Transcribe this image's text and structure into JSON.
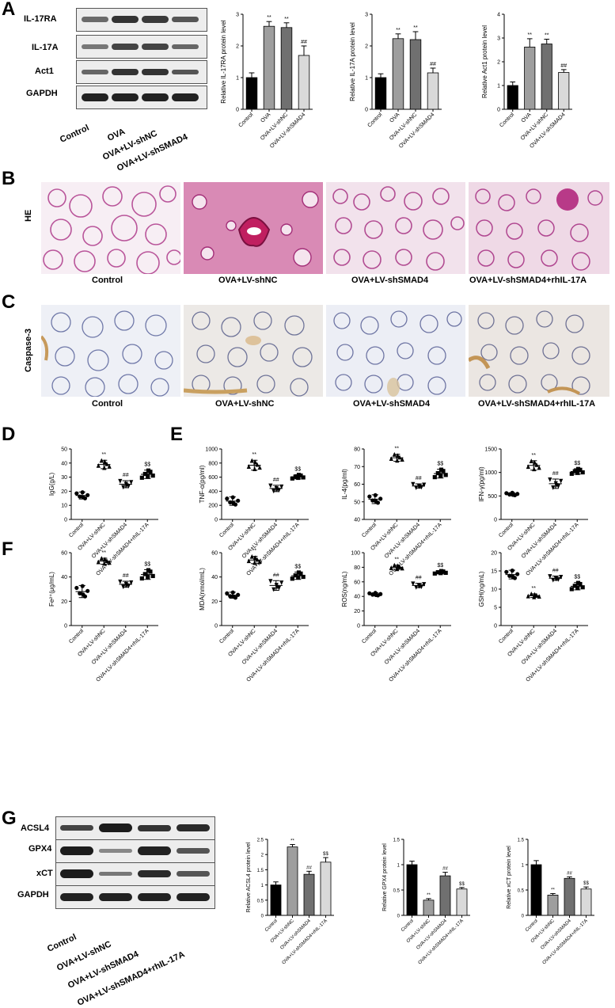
{
  "panels": {
    "A": "A",
    "B": "B",
    "C": "C",
    "D": "D",
    "E": "E",
    "F": "F",
    "G": "G"
  },
  "wb_A": {
    "proteins": [
      "IL-17RA",
      "IL-17A",
      "Act1",
      "GAPDH"
    ],
    "lanes": [
      "Control",
      "OVA",
      "OVA+LV-shNC",
      "OVA+LV-shSMAD4"
    ]
  },
  "histology": {
    "B_side": "HE",
    "C_side": "Caspase-3",
    "groups": [
      "Control",
      "OVA+LV-shNC",
      "OVA+LV-shSMAD4",
      "OVA+LV-shSMAD4+rhIL-17A"
    ]
  },
  "wb_G": {
    "proteins": [
      "ACSL4",
      "GPX4",
      "xCT",
      "GAPDH"
    ],
    "lanes": [
      "Control",
      "OVA+LV-shNC",
      "OVA+LV-shSMAD4",
      "OVA+LV-shSMAD4+rhIL-17A"
    ]
  },
  "chart_data": [
    {
      "id": "A1",
      "type": "bar",
      "categories": [
        "Control",
        "OVA",
        "OVA+LV-shNC",
        "OVA+LV-shSMAD4"
      ],
      "values": [
        1.0,
        2.62,
        2.58,
        1.7
      ],
      "errors": [
        0.15,
        0.15,
        0.15,
        0.3
      ],
      "sig": [
        "",
        "**",
        "**",
        "##"
      ],
      "ylabel": "Relative IL-17RA protein level",
      "ylim": [
        0,
        3
      ],
      "yticks": [
        0,
        1,
        2,
        3
      ],
      "colors": [
        "#000000",
        "#9e9e9e",
        "#707070",
        "#d9d9d9"
      ]
    },
    {
      "id": "A2",
      "type": "bar",
      "categories": [
        "Control",
        "OVA",
        "OVA+LV-shNC",
        "OVA+LV-shSMAD4"
      ],
      "values": [
        1.0,
        2.23,
        2.2,
        1.15
      ],
      "errors": [
        0.12,
        0.15,
        0.25,
        0.15
      ],
      "sig": [
        "",
        "**",
        "**",
        "##"
      ],
      "ylabel": "Relative IL-17A protein level",
      "ylim": [
        0,
        3
      ],
      "yticks": [
        0,
        1,
        2,
        3
      ],
      "colors": [
        "#000000",
        "#9e9e9e",
        "#707070",
        "#d9d9d9"
      ]
    },
    {
      "id": "A3",
      "type": "bar",
      "categories": [
        "Control",
        "OVA",
        "OVA+LV-shNC",
        "OVA+LV-shSMAD4"
      ],
      "values": [
        1.0,
        2.62,
        2.75,
        1.55
      ],
      "errors": [
        0.15,
        0.35,
        0.2,
        0.12
      ],
      "sig": [
        "",
        "**",
        "**",
        "##"
      ],
      "ylabel": "Relative Act1 protein level",
      "ylim": [
        0,
        4
      ],
      "yticks": [
        0,
        1,
        2,
        3,
        4
      ],
      "colors": [
        "#000000",
        "#9e9e9e",
        "#707070",
        "#d9d9d9"
      ]
    },
    {
      "id": "D",
      "type": "scatter",
      "categories": [
        "Control",
        "OVA+LV-shNC",
        "OVA+LV-shSMAD4",
        "OVA+LV-shSMAD4+rhIL-17A"
      ],
      "means": [
        17,
        39,
        25,
        32
      ],
      "sds": [
        2.5,
        3,
        2.5,
        3
      ],
      "sig": [
        "",
        "**",
        "##",
        "$$"
      ],
      "ylabel": "IgG(g/L)",
      "ylim": [
        0,
        50
      ],
      "yticks": [
        0,
        10,
        20,
        30,
        40,
        50
      ],
      "shapes": [
        "circle",
        "triangle",
        "tri-down",
        "square"
      ]
    },
    {
      "id": "E1",
      "type": "scatter",
      "categories": [
        "Control",
        "OVA+LV-shNC",
        "OVA+LV-shSMAD4",
        "OVA+LV-shSMAD4+rhIL-17A"
      ],
      "means": [
        260,
        770,
        440,
        605
      ],
      "sds": [
        60,
        70,
        45,
        30
      ],
      "sig": [
        "",
        "**",
        "##",
        "$$"
      ],
      "ylabel": "TNF-α(pg/ml)",
      "ylim": [
        0,
        1000
      ],
      "yticks": [
        0,
        200,
        400,
        600,
        800,
        1000
      ],
      "shapes": [
        "circle",
        "triangle",
        "tri-down",
        "square"
      ]
    },
    {
      "id": "E2",
      "type": "scatter",
      "categories": [
        "Control",
        "OVA+LV-shNC",
        "OVA+LV-shSMAD4",
        "OVA+LV-shSMAD4+rhIL-17A"
      ],
      "means": [
        51.5,
        75,
        59,
        66
      ],
      "sds": [
        2.5,
        2,
        1.2,
        2.5
      ],
      "sig": [
        "",
        "**",
        "##",
        "$$"
      ],
      "ylabel": "IL-4(pg/ml)",
      "ylim": [
        40,
        80
      ],
      "yticks": [
        40,
        50,
        60,
        70,
        80
      ],
      "shapes": [
        "circle",
        "triangle",
        "tri-down",
        "square"
      ]
    },
    {
      "id": "E3",
      "type": "scatter",
      "categories": [
        "Control",
        "OVA+LV-shNC",
        "OVA+LV-shSMAD4",
        "OVA+LV-shSMAD4+rhIL-17A"
      ],
      "means": [
        540,
        1150,
        760,
        1020
      ],
      "sds": [
        30,
        100,
        100,
        60
      ],
      "sig": [
        "",
        "**",
        "##",
        "$$"
      ],
      "ylabel": "IFN-γ(pg/ml)",
      "ylim": [
        0,
        1500
      ],
      "yticks": [
        0,
        500,
        1000,
        1500
      ],
      "shapes": [
        "circle",
        "triangle",
        "tri-down",
        "square"
      ]
    },
    {
      "id": "F1",
      "type": "scatter",
      "categories": [
        "Control",
        "OVA+LV-shNC",
        "OVA+LV-shSMAD4",
        "OVA+LV-shSMAD4+rhIL-17A"
      ],
      "means": [
        28,
        53,
        34,
        42
      ],
      "sds": [
        5,
        2.5,
        2.5,
        4
      ],
      "sig": [
        "",
        "**",
        "##",
        "$$"
      ],
      "ylabel": "Fe²⁺(μg/mL)",
      "ylim": [
        0,
        60
      ],
      "yticks": [
        0,
        20,
        40,
        60
      ],
      "shapes": [
        "circle",
        "triangle",
        "tri-down",
        "square"
      ]
    },
    {
      "id": "F2",
      "type": "scatter",
      "categories": [
        "Control",
        "OVA+LV-shNC",
        "OVA+LV-shSMAD4",
        "OVA+LV-shSMAD4+rhIL-17A"
      ],
      "means": [
        25,
        54,
        33,
        41
      ],
      "sds": [
        2.5,
        3,
        4,
        3
      ],
      "sig": [
        "",
        "**",
        "##",
        "$$"
      ],
      "ylabel": "MDA(nmol/mL)",
      "ylim": [
        0,
        60
      ],
      "yticks": [
        0,
        20,
        40,
        60
      ],
      "shapes": [
        "circle",
        "triangle",
        "tri-down",
        "square"
      ]
    },
    {
      "id": "F3",
      "type": "scatter",
      "categories": [
        "Control",
        "OVA+LV-shNC",
        "OVA+LV-shSMAD4",
        "OVA+LV-shSMAD4+rhIL-17A"
      ],
      "means": [
        43,
        80,
        55,
        73
      ],
      "sds": [
        2,
        3,
        3,
        2
      ],
      "sig": [
        "",
        "**",
        "##",
        "$$"
      ],
      "ylabel": "ROS(ng/mL)",
      "ylim": [
        0,
        100
      ],
      "yticks": [
        0,
        20,
        40,
        60,
        80,
        100
      ],
      "shapes": [
        "circle",
        "triangle",
        "tri-down",
        "square"
      ]
    },
    {
      "id": "F4",
      "type": "scatter",
      "categories": [
        "Control",
        "OVA+LV-shNC",
        "OVA+LV-shSMAD4",
        "OVA+LV-shSMAD4+rhIL-17A"
      ],
      "means": [
        14,
        8.2,
        13,
        10.8
      ],
      "sds": [
        1.2,
        0.5,
        0.6,
        1
      ],
      "sig": [
        "",
        "**",
        "##",
        "$$"
      ],
      "ylabel": "GSH(ng/mL)",
      "ylim": [
        0,
        20
      ],
      "yticks": [
        0,
        5,
        10,
        15,
        20
      ],
      "shapes": [
        "circle",
        "triangle",
        "tri-down",
        "square"
      ]
    },
    {
      "id": "G1",
      "type": "bar",
      "categories": [
        "Control",
        "OVA+LV-shNC",
        "OVA+LV-shSMAD4",
        "OVA+LV-shSMAD4+rhIL-17A"
      ],
      "values": [
        1.0,
        2.25,
        1.35,
        1.75
      ],
      "errors": [
        0.1,
        0.08,
        0.1,
        0.15
      ],
      "sig": [
        "",
        "**",
        "##",
        "$$"
      ],
      "ylabel": "Relative ACSL4 protein level",
      "ylim": [
        0,
        2.5
      ],
      "yticks": [
        0,
        0.5,
        1.0,
        1.5,
        2.0,
        2.5
      ],
      "colors": [
        "#000000",
        "#9e9e9e",
        "#707070",
        "#d9d9d9"
      ]
    },
    {
      "id": "G2",
      "type": "bar",
      "categories": [
        "Control",
        "OVA+LV-shNC",
        "OVA+LV-shSMAD4",
        "OVA+LV-shSMAD4+rhIL-17A"
      ],
      "values": [
        1.0,
        0.3,
        0.78,
        0.52
      ],
      "errors": [
        0.07,
        0.03,
        0.07,
        0.03
      ],
      "sig": [
        "",
        "**",
        "##",
        "$$"
      ],
      "ylabel": "Relative GPX4 protein level",
      "ylim": [
        0,
        1.5
      ],
      "yticks": [
        0,
        0.5,
        1.0,
        1.5
      ],
      "colors": [
        "#000000",
        "#9e9e9e",
        "#707070",
        "#d9d9d9"
      ]
    },
    {
      "id": "G3",
      "type": "bar",
      "categories": [
        "Control",
        "OVA+LV-shNC",
        "OVA+LV-shSMAD4",
        "OVA+LV-shSMAD4+rhIL-17A"
      ],
      "values": [
        1.0,
        0.4,
        0.73,
        0.52
      ],
      "errors": [
        0.08,
        0.03,
        0.03,
        0.04
      ],
      "sig": [
        "",
        "**",
        "##",
        "$$"
      ],
      "ylabel": "Relative xCT protein level",
      "ylim": [
        0,
        1.5
      ],
      "yticks": [
        0,
        0.5,
        1.0,
        1.5
      ],
      "colors": [
        "#000000",
        "#9e9e9e",
        "#707070",
        "#d9d9d9"
      ]
    }
  ]
}
